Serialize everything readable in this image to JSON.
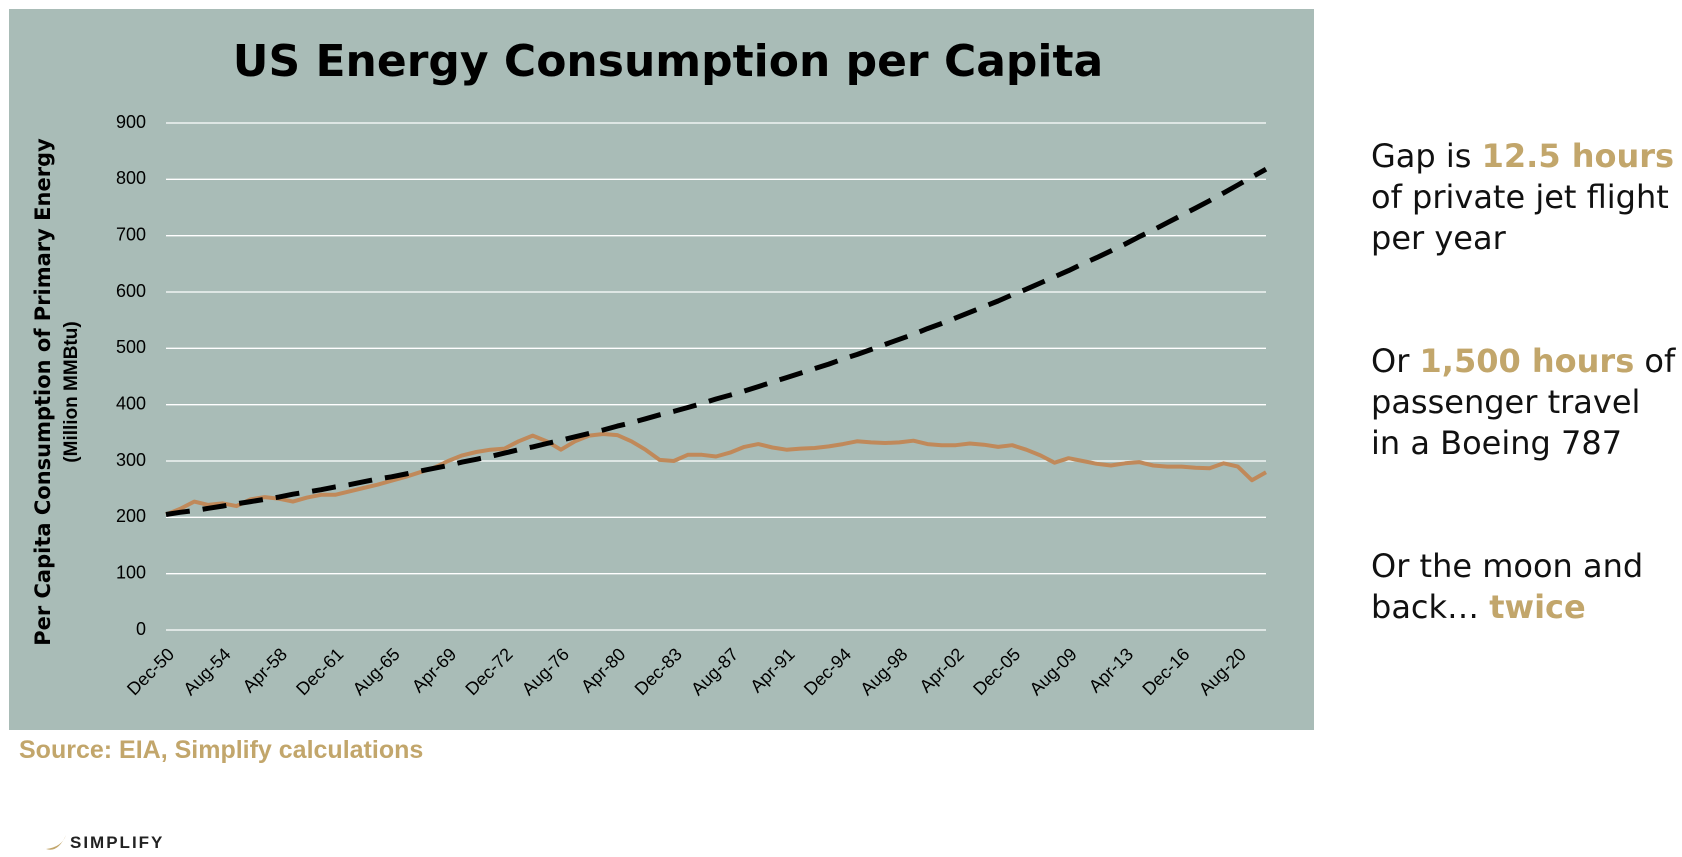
{
  "chart_data": {
    "type": "line",
    "title": "US Energy Consumption per Capita",
    "y_label": [
      "Per Capita Consumption of Primary Energy",
      "(Million MMBtu)"
    ],
    "categories": [
      "Dec-50",
      null,
      null,
      null,
      "Aug-54",
      null,
      null,
      null,
      "Apr-58",
      null,
      null,
      null,
      "Dec-61",
      null,
      null,
      null,
      "Aug-65",
      null,
      null,
      null,
      "Apr-69",
      null,
      null,
      null,
      "Dec-72",
      null,
      null,
      null,
      "Aug-76",
      null,
      null,
      null,
      "Apr-80",
      null,
      null,
      null,
      "Dec-83",
      null,
      null,
      null,
      "Aug-87",
      null,
      null,
      null,
      "Apr-91",
      null,
      null,
      null,
      "Dec-94",
      null,
      null,
      null,
      "Aug-98",
      null,
      null,
      null,
      "Apr-02",
      null,
      null,
      null,
      "Dec-05",
      null,
      null,
      null,
      "Aug-09",
      null,
      null,
      null,
      "Apr-13",
      null,
      null,
      null,
      "Dec-16",
      null,
      null,
      null,
      "Aug-20",
      null,
      null
    ],
    "series": [
      {
        "color": "#c0895a",
        "dashed": false,
        "values": [
          205,
          215,
          228,
          222,
          225,
          220,
          232,
          236,
          233,
          228,
          235,
          240,
          240,
          246,
          252,
          258,
          265,
          272,
          280,
          288,
          300,
          310,
          316,
          320,
          322,
          335,
          345,
          335,
          320,
          335,
          345,
          348,
          346,
          335,
          320,
          302,
          300,
          311,
          311,
          308,
          315,
          325,
          330,
          324,
          320,
          322,
          323,
          326,
          330,
          335,
          333,
          332,
          333,
          336,
          330,
          328,
          328,
          331,
          329,
          325,
          328,
          320,
          310,
          297,
          305,
          300,
          295,
          292,
          296,
          298,
          292,
          290,
          290,
          288,
          287,
          296,
          290,
          266,
          280
        ]
      },
      {
        "color": "#000000",
        "dashed": true,
        "values": [
          205,
          209,
          212,
          216,
          220,
          224,
          228,
          232,
          236,
          241,
          245,
          249,
          254,
          258,
          263,
          268,
          272,
          277,
          282,
          287,
          292,
          298,
          303,
          308,
          314,
          320,
          325,
          331,
          337,
          343,
          349,
          355,
          362,
          368,
          375,
          382,
          388,
          395,
          402,
          410,
          417,
          424,
          432,
          440,
          448,
          456,
          464,
          472,
          481,
          489,
          498,
          507,
          516,
          525,
          535,
          544,
          554,
          564,
          574,
          584,
          595,
          605,
          616,
          627,
          638,
          650,
          661,
          673,
          685,
          698,
          710,
          723,
          736,
          749,
          762,
          776,
          790,
          804,
          818
        ]
      }
    ],
    "ylim": [
      0,
      900
    ],
    "yticks": [
      0,
      100,
      200,
      300,
      400,
      500,
      600,
      700,
      800,
      900
    ],
    "grid": true,
    "background": "#a9bcb7",
    "side_text": [
      [
        {
          "text": "Gap is ",
          "highlight": false
        },
        {
          "text": "12.5 hours",
          "highlight": true
        },
        {
          "text": " of private jet flight per year",
          "highlight": false
        }
      ],
      [
        {
          "text": "Or ",
          "highlight": false
        },
        {
          "text": "1,500 hours",
          "highlight": true
        },
        {
          "text": " of passenger travel in a Boeing 787",
          "highlight": false
        }
      ],
      [
        {
          "text": "Or the moon and back… ",
          "highlight": false
        },
        {
          "text": "twice",
          "highlight": true
        }
      ]
    ],
    "source": "Source: EIA, Simplify calculations",
    "logo": "SIMPLIFY"
  }
}
